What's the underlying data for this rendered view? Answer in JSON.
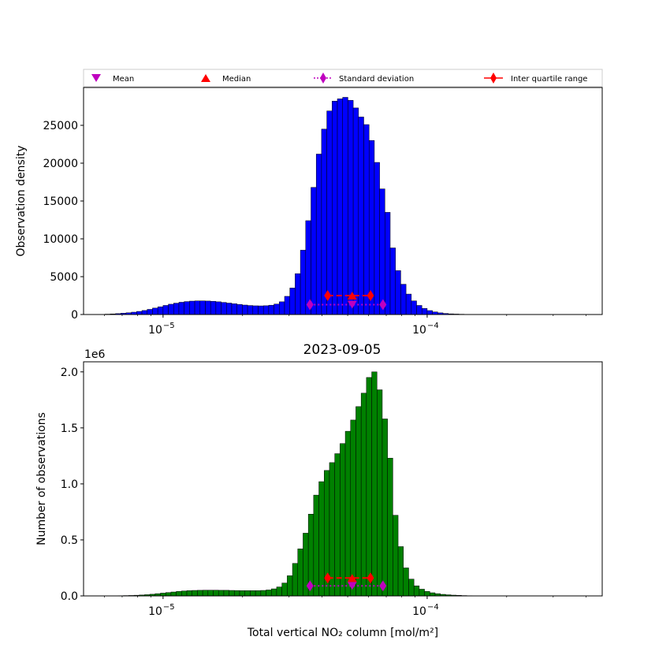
{
  "legend": {
    "items": [
      {
        "label": "Mean",
        "marker": "triangle-down",
        "color": "#bf00bf"
      },
      {
        "label": "Median",
        "marker": "triangle-up",
        "color": "#ff0000"
      },
      {
        "label": "Standard deviation",
        "marker": "diamond-dotted-line",
        "color": "#bf00bf"
      },
      {
        "label": "Inter quartile range",
        "marker": "diamond-solid-line",
        "color": "#ff0000"
      }
    ]
  },
  "chart_data": [
    {
      "type": "bar",
      "title": "",
      "xlabel": "",
      "ylabel": "Observation density",
      "xscale": "log",
      "xlim": [
        5e-06,
        0.00046
      ],
      "ylim": [
        0,
        30000
      ],
      "yticks": [
        0,
        5000,
        10000,
        15000,
        20000,
        25000
      ],
      "ytick_labels": [
        "0",
        "5000",
        "10000",
        "15000",
        "20000",
        "25000"
      ],
      "xticks": [
        1e-05,
        0.0001
      ],
      "xtick_labels": [
        "10",
        "10"
      ],
      "xtick_exponents": [
        "−5",
        "−4"
      ],
      "bar_color": "#0000ff",
      "bin_edges_log10": {
        "start": -5.24,
        "step": 0.02,
        "count": 90
      },
      "values": [
        0,
        50,
        80,
        120,
        170,
        230,
        310,
        410,
        530,
        680,
        850,
        1020,
        1200,
        1360,
        1500,
        1620,
        1710,
        1770,
        1800,
        1800,
        1780,
        1740,
        1680,
        1600,
        1510,
        1420,
        1330,
        1250,
        1190,
        1150,
        1140,
        1160,
        1230,
        1380,
        1680,
        2400,
        3500,
        5400,
        8500,
        12400,
        16800,
        21200,
        24500,
        26900,
        28200,
        28500,
        28700,
        28300,
        27300,
        26100,
        25100,
        23000,
        20100,
        16600,
        13500,
        8800,
        5800,
        4000,
        2700,
        1800,
        1200,
        800,
        520,
        340,
        220,
        140,
        90,
        60,
        40,
        25,
        15,
        10,
        6,
        4,
        2,
        1,
        1,
        0,
        0,
        0,
        0,
        0,
        0,
        0,
        0,
        0,
        0,
        0,
        0,
        0
      ],
      "stats": {
        "mean": {
          "x": 5.2e-05,
          "y": 1300
        },
        "median": {
          "x": 5.2e-05,
          "y": 2500
        },
        "std": {
          "x": [
            3.6e-05,
            6.8e-05
          ],
          "y": 1300
        },
        "iqr": {
          "x": [
            4.2e-05,
            6.1e-05
          ],
          "y": 2500
        }
      }
    },
    {
      "type": "bar",
      "title": "2023-09-05",
      "xlabel": "Total vertical NO₂ column [mol/m²]",
      "ylabel": "Number of observations",
      "offset_text": "1e6",
      "xscale": "log",
      "xlim": [
        5e-06,
        0.00046
      ],
      "ylim": [
        0,
        2.09
      ],
      "yticks": [
        0.0,
        0.5,
        1.0,
        1.5,
        2.0
      ],
      "ytick_labels": [
        "0.0",
        "0.5",
        "1.0",
        "1.5",
        "2.0"
      ],
      "xticks": [
        1e-05,
        0.0001
      ],
      "xtick_labels": [
        "10",
        "10"
      ],
      "xtick_exponents": [
        "−5",
        "−4"
      ],
      "bar_color": "#008000",
      "bin_edges_log10": {
        "start": -5.17,
        "step": 0.02,
        "count": 90
      },
      "values": [
        0.002,
        0.003,
        0.004,
        0.006,
        0.008,
        0.011,
        0.015,
        0.02,
        0.025,
        0.03,
        0.035,
        0.04,
        0.044,
        0.047,
        0.049,
        0.05,
        0.051,
        0.051,
        0.051,
        0.05,
        0.05,
        0.049,
        0.048,
        0.047,
        0.047,
        0.047,
        0.047,
        0.049,
        0.053,
        0.063,
        0.08,
        0.115,
        0.18,
        0.29,
        0.42,
        0.56,
        0.73,
        0.9,
        1.02,
        1.12,
        1.19,
        1.27,
        1.36,
        1.47,
        1.57,
        1.69,
        1.81,
        1.95,
        2.0,
        1.84,
        1.58,
        1.23,
        0.72,
        0.44,
        0.25,
        0.15,
        0.09,
        0.06,
        0.04,
        0.028,
        0.02,
        0.014,
        0.01,
        0.007,
        0.005,
        0.003,
        0.002,
        0.001,
        0.001,
        0.001,
        0,
        0,
        0,
        0,
        0,
        0,
        0,
        0,
        0,
        0,
        0,
        0,
        0,
        0,
        0,
        0,
        0,
        0,
        0,
        0
      ],
      "stats": {
        "mean": {
          "x": 5.2e-05,
          "y": 0.09
        },
        "median": {
          "x": 5.2e-05,
          "y": 0.16
        },
        "std": {
          "x": [
            3.6e-05,
            6.8e-05
          ],
          "y": 0.09
        },
        "iqr": {
          "x": [
            4.2e-05,
            6.1e-05
          ],
          "y": 0.16
        }
      }
    }
  ]
}
